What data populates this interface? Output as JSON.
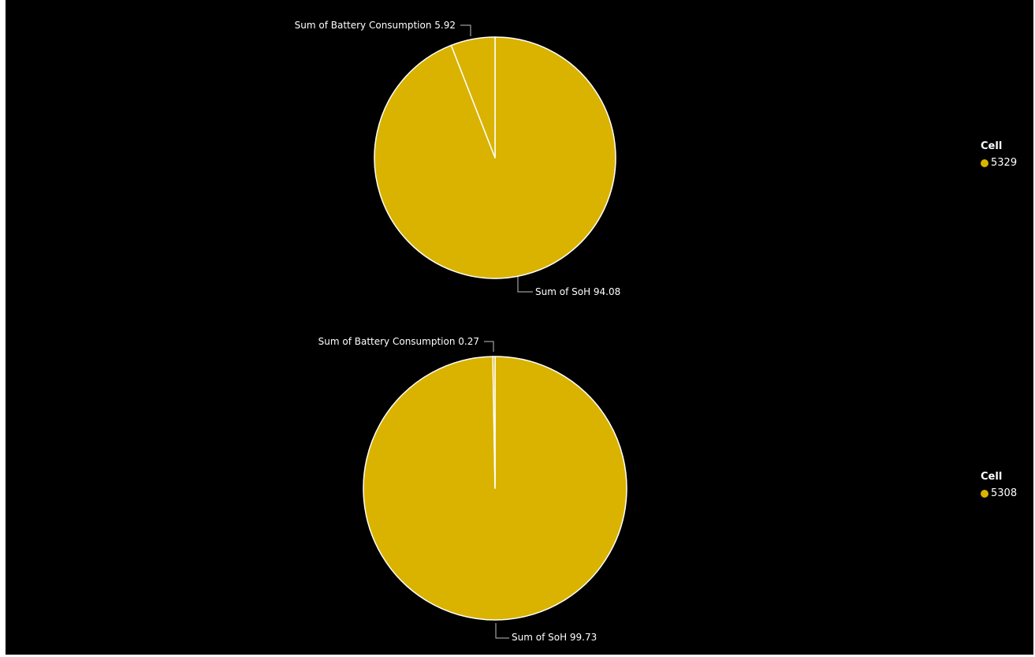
{
  "colors": {
    "background": "#000000",
    "slice": "#D9B300",
    "separator": "#ffffff",
    "leader": "#bfbfbf"
  },
  "chart_data": [
    {
      "type": "pie",
      "title": "",
      "legend": {
        "title": "Cell",
        "entries": [
          "5329"
        ],
        "placement": "right"
      },
      "slices": [
        {
          "name": "Sum of SoH",
          "value": 94.08,
          "label": "Sum of SoH 94.08"
        },
        {
          "name": "Sum of Battery Consumption",
          "value": 5.92,
          "label": "Sum of Battery Consumption 5.92"
        }
      ]
    },
    {
      "type": "pie",
      "title": "",
      "legend": {
        "title": "Cell",
        "entries": [
          "5308"
        ],
        "placement": "right"
      },
      "slices": [
        {
          "name": "Sum of SoH",
          "value": 99.73,
          "label": "Sum of SoH 99.73"
        },
        {
          "name": "Sum of Battery Consumption",
          "value": 0.27,
          "label": "Sum of Battery Consumption 0.27"
        }
      ]
    }
  ]
}
